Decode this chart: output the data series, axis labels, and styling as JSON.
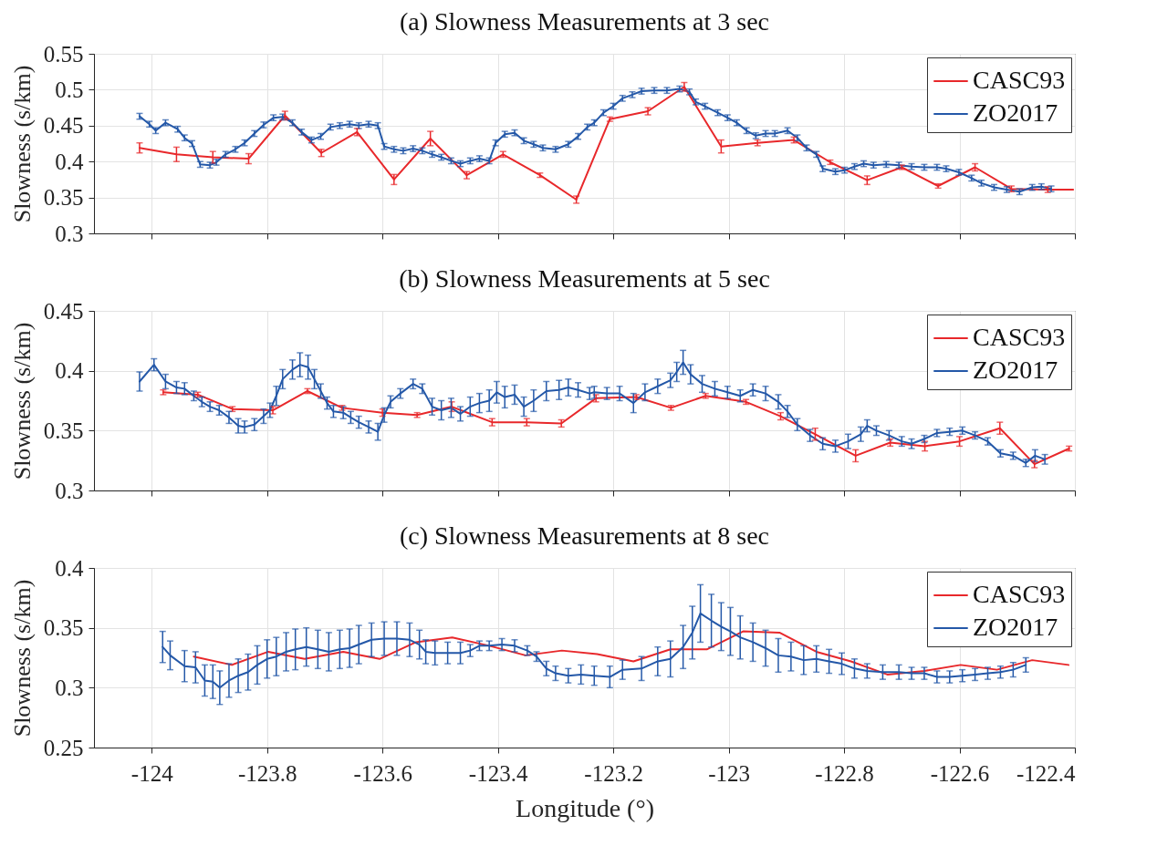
{
  "chart_data": [
    {
      "type": "line",
      "title": "(a) Slowness Measurements at 3 sec",
      "ylabel": "Slowness (s/km)",
      "xlim": [
        -124.1,
        -122.4
      ],
      "xticks": [
        -124,
        -123.8,
        -123.6,
        -123.4,
        -123.2,
        -123,
        -122.8,
        -122.6,
        -122.4
      ],
      "ylim": [
        0.3,
        0.55
      ],
      "yticks": [
        0.3,
        0.35,
        0.4,
        0.45,
        0.5,
        0.55
      ],
      "grid": true,
      "legend": "top right",
      "tick_labels": "y",
      "series": [
        {
          "name": "CASC93",
          "color": "#e8282b",
          "x": [
            -124.021,
            -123.957,
            -123.894,
            -123.832,
            -123.769,
            -123.706,
            -123.644,
            -123.58,
            -123.517,
            -123.454,
            -123.391,
            -123.327,
            -123.264,
            -123.206,
            -123.14,
            -123.077,
            -123.013,
            -122.95,
            -122.887,
            -122.824,
            -122.76,
            -122.7,
            -122.637,
            -122.573,
            -122.51,
            -122.447,
            -122.403
          ],
          "values": [
            0.419,
            0.41,
            0.406,
            0.404,
            0.464,
            0.412,
            0.441,
            0.375,
            0.432,
            0.381,
            0.41,
            0.381,
            0.347,
            0.459,
            0.47,
            0.504,
            0.421,
            0.426,
            0.43,
            0.399,
            0.374,
            0.392,
            0.366,
            0.392,
            0.362,
            0.361,
            0.361
          ],
          "errors": [
            0.007,
            0.01,
            0.008,
            0.007,
            0.006,
            0.005,
            0.005,
            0.007,
            0.01,
            0.005,
            0.004,
            0.003,
            0.005,
            0.003,
            0.005,
            0.006,
            0.009,
            0.004,
            0.004,
            0.003,
            0.006,
            0.003,
            0.003,
            0.005,
            0.004,
            0.004,
            null
          ]
        },
        {
          "name": "ZO2017",
          "color": "#2458a8",
          "x": [
            -124.021,
            -124.004,
            -123.993,
            -123.976,
            -123.955,
            -123.943,
            -123.93,
            -123.916,
            -123.899,
            -123.888,
            -123.872,
            -123.855,
            -123.839,
            -123.822,
            -123.806,
            -123.789,
            -123.773,
            -123.756,
            -123.74,
            -123.723,
            -123.707,
            -123.69,
            -123.674,
            -123.657,
            -123.641,
            -123.624,
            -123.608,
            -123.597,
            -123.58,
            -123.564,
            -123.547,
            -123.531,
            -123.514,
            -123.498,
            -123.481,
            -123.465,
            -123.448,
            -123.432,
            -123.415,
            -123.404,
            -123.388,
            -123.371,
            -123.355,
            -123.338,
            -123.322,
            -123.3,
            -123.278,
            -123.261,
            -123.245,
            -123.233,
            -123.217,
            -123.2,
            -123.184,
            -123.167,
            -123.151,
            -123.129,
            -123.107,
            -123.085,
            -123.068,
            -123.057,
            -123.041,
            -123.019,
            -123.002,
            -122.986,
            -122.969,
            -122.953,
            -122.936,
            -122.92,
            -122.898,
            -122.881,
            -122.865,
            -122.848,
            -122.837,
            -122.815,
            -122.799,
            -122.782,
            -122.766,
            -122.749,
            -122.727,
            -122.705,
            -122.683,
            -122.661,
            -122.639,
            -122.623,
            -122.601,
            -122.579,
            -122.562,
            -122.54,
            -122.518,
            -122.496,
            -122.474,
            -122.458,
            -122.441
          ],
          "values": [
            0.463,
            0.452,
            0.443,
            0.454,
            0.445,
            0.433,
            0.425,
            0.396,
            0.395,
            0.399,
            0.41,
            0.417,
            0.426,
            0.439,
            0.451,
            0.461,
            0.462,
            0.454,
            0.441,
            0.43,
            0.435,
            0.448,
            0.45,
            0.452,
            0.45,
            0.452,
            0.45,
            0.421,
            0.417,
            0.415,
            0.418,
            0.415,
            0.41,
            0.406,
            0.401,
            0.397,
            0.401,
            0.404,
            0.401,
            0.426,
            0.438,
            0.44,
            0.429,
            0.424,
            0.419,
            0.417,
            0.424,
            0.435,
            0.448,
            0.454,
            0.468,
            0.477,
            0.488,
            0.493,
            0.498,
            0.499,
            0.499,
            0.501,
            0.497,
            0.483,
            0.477,
            0.468,
            0.461,
            0.454,
            0.443,
            0.436,
            0.439,
            0.439,
            0.443,
            0.433,
            0.419,
            0.41,
            0.39,
            0.386,
            0.388,
            0.393,
            0.397,
            0.395,
            0.396,
            0.395,
            0.393,
            0.392,
            0.392,
            0.39,
            0.385,
            0.377,
            0.37,
            0.364,
            0.361,
            0.358,
            0.364,
            0.365,
            0.362
          ],
          "errors": [
            0.004,
            0.004,
            0.004,
            0.004,
            0.004,
            0.004,
            0.004,
            0.004,
            0.004,
            0.004,
            0.004,
            0.004,
            0.004,
            0.004,
            0.004,
            0.004,
            0.004,
            0.004,
            0.004,
            0.004,
            0.004,
            0.004,
            0.004,
            0.004,
            0.004,
            0.004,
            0.004,
            0.004,
            0.004,
            0.004,
            0.004,
            0.004,
            0.004,
            0.004,
            0.004,
            0.004,
            0.004,
            0.004,
            0.004,
            0.004,
            0.004,
            0.004,
            0.004,
            0.004,
            0.004,
            0.004,
            0.004,
            0.004,
            0.004,
            0.004,
            0.004,
            0.004,
            0.004,
            0.004,
            0.004,
            0.004,
            0.004,
            0.004,
            0.004,
            0.004,
            0.004,
            0.004,
            0.004,
            0.004,
            0.004,
            0.004,
            0.004,
            0.004,
            0.004,
            0.004,
            0.004,
            0.004,
            0.004,
            0.004,
            0.004,
            0.004,
            0.004,
            0.004,
            0.004,
            0.004,
            0.004,
            0.004,
            0.004,
            0.004,
            0.004,
            0.004,
            0.004,
            0.004,
            0.004,
            0.004,
            0.004,
            0.004,
            0.004
          ]
        }
      ]
    },
    {
      "type": "line",
      "title": "(b) Slowness Measurements at 5 sec",
      "ylabel": "Slowness (s/km)",
      "xlim": [
        -124.1,
        -122.4
      ],
      "xticks": [
        -124,
        -123.8,
        -123.6,
        -123.4,
        -123.2,
        -123,
        -122.8,
        -122.6,
        -122.4
      ],
      "ylim": [
        0.3,
        0.45
      ],
      "yticks": [
        0.3,
        0.35,
        0.4,
        0.45
      ],
      "grid": true,
      "legend": "top right",
      "tick_labels": "y",
      "series": [
        {
          "name": "CASC93",
          "color": "#e8282b",
          "x": [
            -123.98,
            -123.92,
            -123.86,
            -123.79,
            -123.73,
            -123.67,
            -123.6,
            -123.54,
            -123.48,
            -123.41,
            -123.35,
            -123.29,
            -123.23,
            -123.16,
            -123.1,
            -123.04,
            -122.97,
            -122.91,
            -122.85,
            -122.78,
            -122.72,
            -122.66,
            -122.6,
            -122.53,
            -122.47,
            -122.41
          ],
          "values": [
            0.382,
            0.38,
            0.368,
            0.367,
            0.383,
            0.369,
            0.365,
            0.363,
            0.37,
            0.357,
            0.357,
            0.356,
            0.377,
            0.378,
            0.369,
            0.379,
            0.374,
            0.362,
            0.347,
            0.329,
            0.34,
            0.337,
            0.341,
            0.352,
            0.322,
            0.335
          ],
          "errors": [
            0.002,
            0.002,
            0.002,
            0.003,
            0.002,
            0.002,
            0.003,
            0.002,
            0.004,
            0.003,
            0.003,
            0.003,
            0.003,
            0.002,
            0.002,
            0.002,
            0.002,
            0.003,
            0.005,
            0.005,
            0.003,
            0.004,
            0.004,
            0.005,
            0.003,
            0.002
          ]
        },
        {
          "name": "ZO2017",
          "color": "#2458a8",
          "x": [
            -124.021,
            -123.996,
            -123.976,
            -123.957,
            -123.943,
            -123.927,
            -123.913,
            -123.899,
            -123.883,
            -123.866,
            -123.85,
            -123.839,
            -123.822,
            -123.806,
            -123.795,
            -123.784,
            -123.773,
            -123.756,
            -123.743,
            -123.729,
            -123.718,
            -123.707,
            -123.696,
            -123.685,
            -123.668,
            -123.655,
            -123.641,
            -123.624,
            -123.608,
            -123.597,
            -123.586,
            -123.569,
            -123.547,
            -123.531,
            -123.514,
            -123.498,
            -123.481,
            -123.465,
            -123.448,
            -123.432,
            -123.415,
            -123.402,
            -123.388,
            -123.371,
            -123.355,
            -123.338,
            -123.316,
            -123.294,
            -123.278,
            -123.261,
            -123.241,
            -123.233,
            -123.211,
            -123.189,
            -123.165,
            -123.145,
            -123.123,
            -123.101,
            -123.09,
            -123.079,
            -123.066,
            -123.046,
            -123.024,
            -123.002,
            -122.98,
            -122.958,
            -122.936,
            -122.914,
            -122.898,
            -122.881,
            -122.859,
            -122.837,
            -122.815,
            -122.793,
            -122.771,
            -122.76,
            -122.744,
            -122.722,
            -122.7,
            -122.683,
            -122.661,
            -122.639,
            -122.617,
            -122.595,
            -122.573,
            -122.551,
            -122.529,
            -122.507,
            -122.485,
            -122.469,
            -122.452
          ],
          "values": [
            0.391,
            0.405,
            0.391,
            0.386,
            0.385,
            0.379,
            0.374,
            0.37,
            0.367,
            0.361,
            0.354,
            0.353,
            0.355,
            0.362,
            0.367,
            0.379,
            0.393,
            0.401,
            0.405,
            0.403,
            0.393,
            0.383,
            0.373,
            0.366,
            0.365,
            0.361,
            0.357,
            0.353,
            0.349,
            0.363,
            0.374,
            0.381,
            0.389,
            0.385,
            0.37,
            0.367,
            0.369,
            0.364,
            0.37,
            0.373,
            0.375,
            0.382,
            0.378,
            0.38,
            0.37,
            0.375,
            0.383,
            0.384,
            0.386,
            0.384,
            0.381,
            0.382,
            0.381,
            0.381,
            0.373,
            0.382,
            0.387,
            0.392,
            0.399,
            0.407,
            0.397,
            0.389,
            0.385,
            0.382,
            0.379,
            0.384,
            0.381,
            0.374,
            0.366,
            0.355,
            0.346,
            0.339,
            0.337,
            0.341,
            0.347,
            0.354,
            0.35,
            0.346,
            0.341,
            0.339,
            0.343,
            0.348,
            0.349,
            0.35,
            0.346,
            0.341,
            0.331,
            0.329,
            0.323,
            0.329,
            0.326
          ],
          "errors": [
            0.008,
            0.005,
            0.006,
            0.005,
            0.005,
            0.004,
            0.004,
            0.004,
            0.004,
            0.005,
            0.006,
            0.005,
            0.005,
            0.006,
            0.006,
            0.008,
            0.008,
            0.008,
            0.01,
            0.01,
            0.008,
            0.006,
            0.005,
            0.005,
            0.005,
            0.005,
            0.005,
            0.005,
            0.007,
            0.006,
            0.005,
            0.004,
            0.004,
            0.004,
            0.007,
            0.008,
            0.008,
            0.006,
            0.008,
            0.008,
            0.009,
            0.009,
            0.009,
            0.008,
            0.008,
            0.009,
            0.008,
            0.008,
            0.007,
            0.006,
            0.005,
            0.005,
            0.005,
            0.006,
            0.008,
            0.007,
            0.006,
            0.006,
            0.008,
            0.01,
            0.008,
            0.007,
            0.006,
            0.005,
            0.005,
            0.005,
            0.006,
            0.006,
            0.005,
            0.005,
            0.005,
            0.005,
            0.005,
            0.006,
            0.006,
            0.005,
            0.004,
            0.004,
            0.004,
            0.004,
            0.003,
            0.003,
            0.003,
            0.003,
            0.003,
            0.003,
            0.003,
            0.003,
            0.003,
            0.005,
            0.004
          ]
        }
      ]
    },
    {
      "type": "line",
      "title": "(c) Slowness Measurements at 8 sec",
      "xlabel": "Longitude (°)",
      "ylabel": "Slowness (s/km)",
      "xlim": [
        -124.1,
        -122.4
      ],
      "xticks": [
        -124,
        -123.8,
        -123.6,
        -123.4,
        -123.2,
        -123,
        -122.8,
        -122.6,
        -122.4
      ],
      "ylim": [
        0.25,
        0.4
      ],
      "yticks": [
        0.25,
        0.3,
        0.35,
        0.4
      ],
      "grid": true,
      "legend": "top right",
      "series": [
        {
          "name": "CASC93",
          "color": "#e8282b",
          "x": [
            -123.927,
            -123.861,
            -123.798,
            -123.735,
            -123.668,
            -123.605,
            -123.542,
            -123.479,
            -123.415,
            -123.352,
            -123.289,
            -123.228,
            -123.165,
            -123.101,
            -123.038,
            -122.975,
            -122.912,
            -122.848,
            -122.788,
            -122.725,
            -122.661,
            -122.598,
            -122.535,
            -122.474,
            -122.411
          ],
          "values": [
            0.326,
            0.319,
            0.33,
            0.324,
            0.33,
            0.324,
            0.338,
            0.342,
            0.335,
            0.327,
            0.331,
            0.328,
            0.322,
            0.332,
            0.332,
            0.347,
            0.346,
            0.33,
            0.322,
            0.311,
            0.314,
            0.319,
            0.315,
            0.323,
            0.319
          ]
        },
        {
          "name": "ZO2017",
          "color": "#2458a8",
          "x": [
            -123.981,
            -123.968,
            -123.943,
            -123.924,
            -123.908,
            -123.894,
            -123.882,
            -123.866,
            -123.85,
            -123.833,
            -123.817,
            -123.8,
            -123.784,
            -123.767,
            -123.751,
            -123.732,
            -123.712,
            -123.693,
            -123.674,
            -123.657,
            -123.641,
            -123.619,
            -123.597,
            -123.575,
            -123.553,
            -123.536,
            -123.525,
            -123.509,
            -123.487,
            -123.465,
            -123.448,
            -123.432,
            -123.415,
            -123.393,
            -123.371,
            -123.349,
            -123.333,
            -123.316,
            -123.3,
            -123.278,
            -123.256,
            -123.233,
            -123.206,
            -123.184,
            -123.151,
            -123.123,
            -123.101,
            -123.079,
            -123.063,
            -123.049,
            -123.03,
            -123.013,
            -122.997,
            -122.98,
            -122.958,
            -122.936,
            -122.914,
            -122.892,
            -122.87,
            -122.848,
            -122.826,
            -122.804,
            -122.782,
            -122.76,
            -122.733,
            -122.705,
            -122.683,
            -122.661,
            -122.639,
            -122.617,
            -122.595,
            -122.573,
            -122.551,
            -122.529,
            -122.507,
            -122.485
          ],
          "values": [
            0.334,
            0.327,
            0.318,
            0.317,
            0.306,
            0.305,
            0.3,
            0.306,
            0.31,
            0.313,
            0.319,
            0.324,
            0.326,
            0.33,
            0.332,
            0.334,
            0.332,
            0.33,
            0.332,
            0.333,
            0.336,
            0.34,
            0.341,
            0.341,
            0.34,
            0.336,
            0.33,
            0.329,
            0.329,
            0.329,
            0.331,
            0.335,
            0.335,
            0.336,
            0.335,
            0.331,
            0.326,
            0.316,
            0.312,
            0.31,
            0.311,
            0.31,
            0.309,
            0.315,
            0.316,
            0.322,
            0.324,
            0.334,
            0.346,
            0.362,
            0.356,
            0.351,
            0.347,
            0.342,
            0.338,
            0.333,
            0.327,
            0.326,
            0.323,
            0.324,
            0.322,
            0.32,
            0.316,
            0.314,
            0.313,
            0.313,
            0.312,
            0.312,
            0.309,
            0.309,
            0.31,
            0.311,
            0.312,
            0.313,
            0.315,
            0.319
          ],
          "errors": [
            0.013,
            0.012,
            0.013,
            0.013,
            0.013,
            0.014,
            0.014,
            0.014,
            0.014,
            0.015,
            0.016,
            0.016,
            0.016,
            0.016,
            0.017,
            0.016,
            0.016,
            0.016,
            0.016,
            0.016,
            0.016,
            0.014,
            0.014,
            0.014,
            0.014,
            0.012,
            0.01,
            0.01,
            0.009,
            0.009,
            0.005,
            0.004,
            0.004,
            0.005,
            0.005,
            0.004,
            0.004,
            0.006,
            0.006,
            0.006,
            0.008,
            0.008,
            0.009,
            0.008,
            0.01,
            0.012,
            0.015,
            0.018,
            0.022,
            0.024,
            0.022,
            0.02,
            0.02,
            0.018,
            0.016,
            0.015,
            0.014,
            0.012,
            0.012,
            0.011,
            0.01,
            0.009,
            0.008,
            0.006,
            0.006,
            0.006,
            0.005,
            0.005,
            0.005,
            0.005,
            0.005,
            0.005,
            0.005,
            0.005,
            0.006,
            0.006
          ]
        }
      ]
    }
  ]
}
